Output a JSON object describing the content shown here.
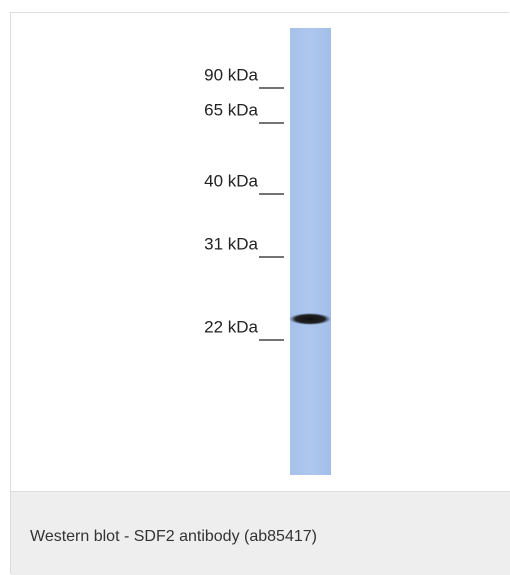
{
  "image": {
    "markers": [
      "90 kDa",
      "65 kDa",
      "40 kDa",
      "31 kDa",
      "22 kDa"
    ]
  },
  "caption": "Western blot - SDF2 antibody (ab85417)"
}
